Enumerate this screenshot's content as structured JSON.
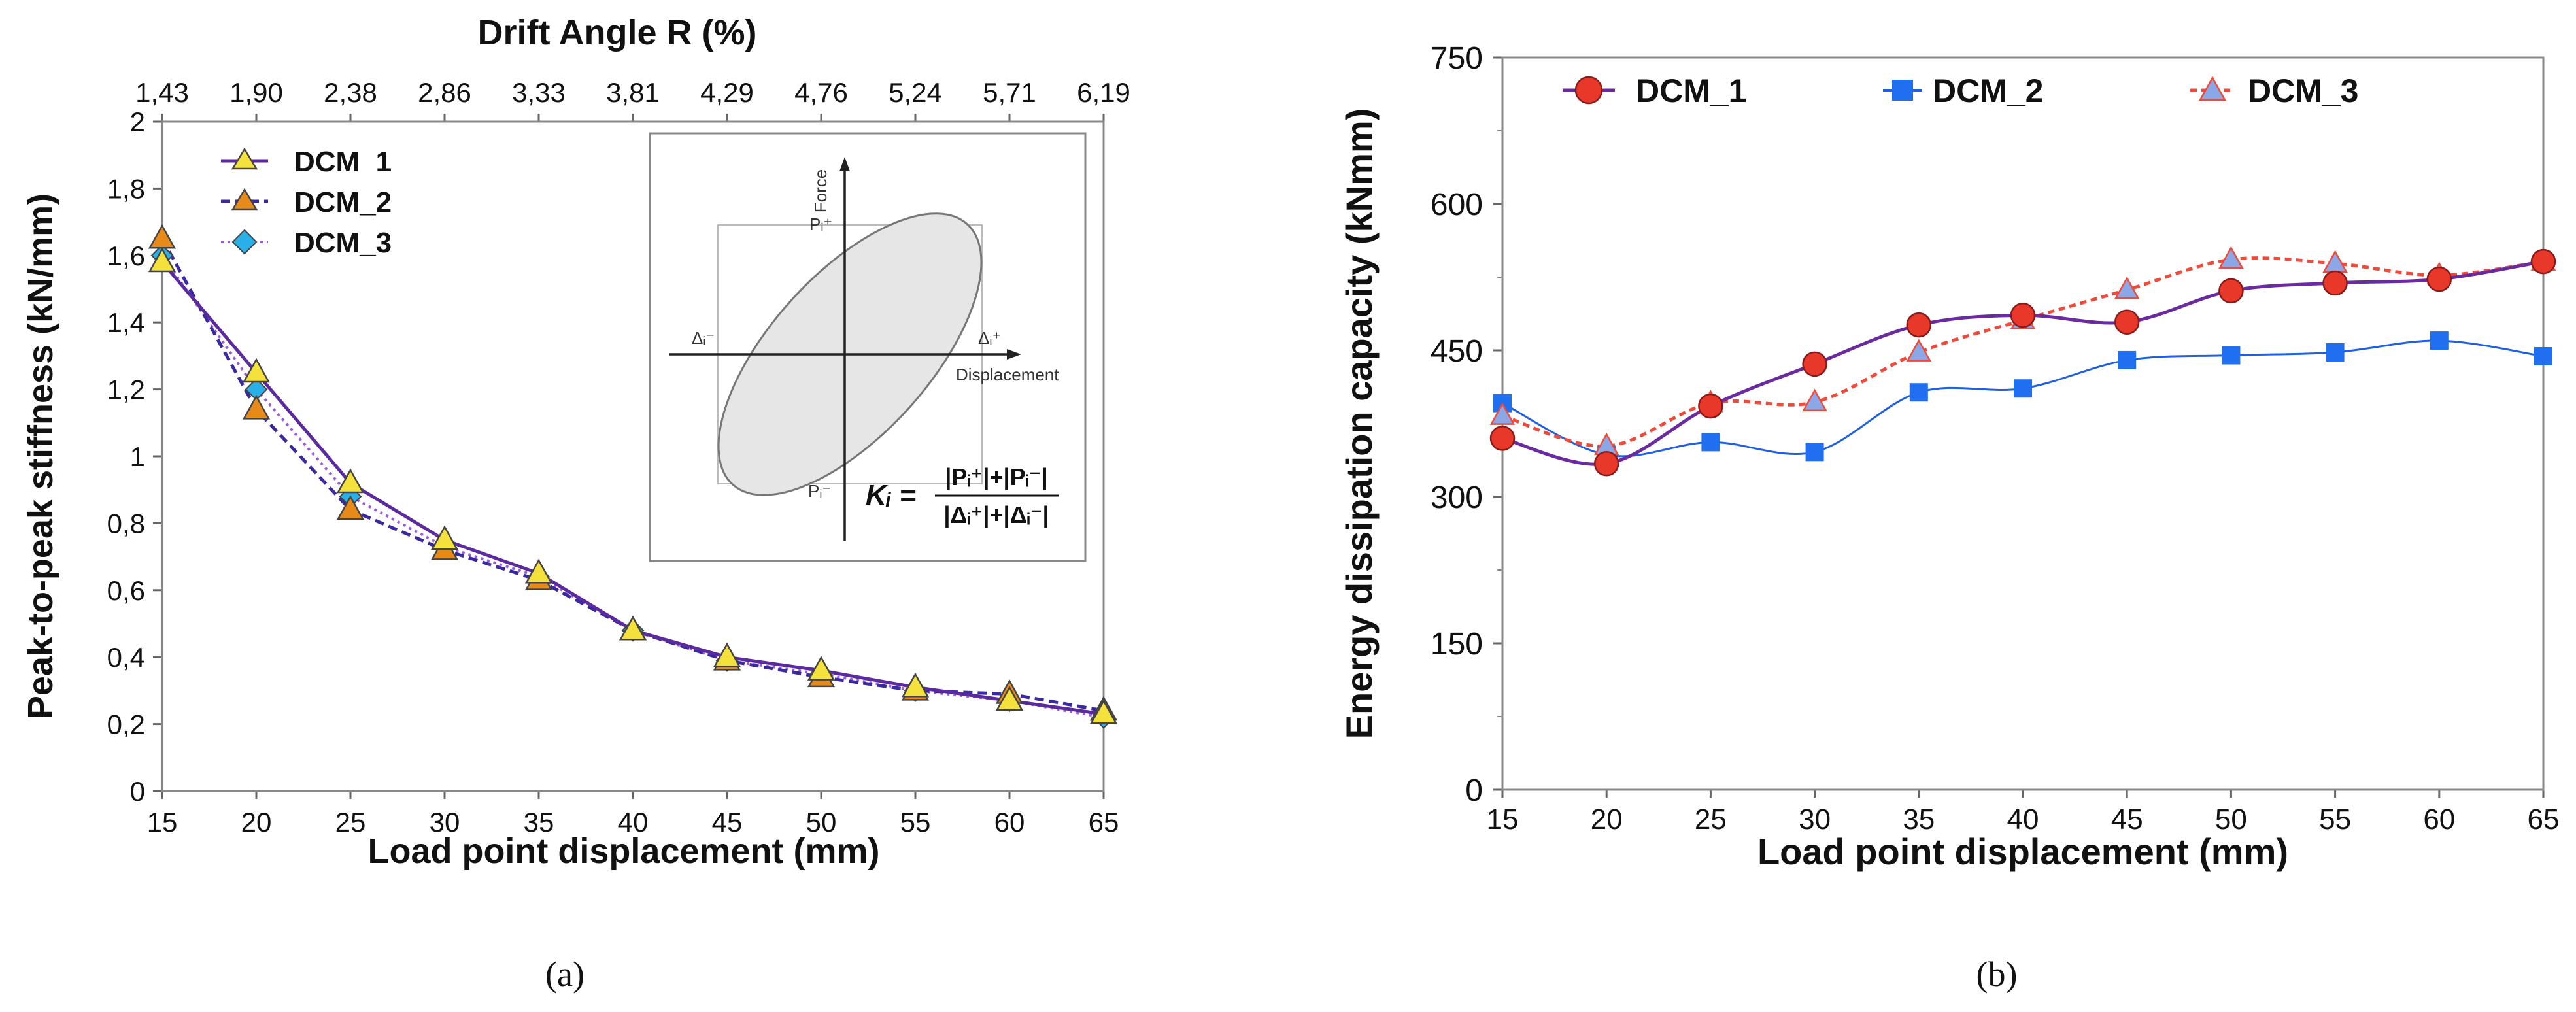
{
  "chart_data": [
    {
      "type": "line",
      "panel_label": "(a)",
      "xlabel": "Load point displacement (mm)",
      "x2label": "Drift Angle R (%)",
      "ylabel": "Peak-to-peak stiffness (kN/mm)",
      "x": [
        15,
        20,
        25,
        30,
        35,
        40,
        45,
        50,
        55,
        60,
        65
      ],
      "xlim": [
        15,
        65
      ],
      "ylim": [
        0,
        2
      ],
      "xticks": [
        "15",
        "20",
        "25",
        "30",
        "35",
        "40",
        "45",
        "50",
        "55",
        "60",
        "65"
      ],
      "yticks": [
        "0",
        "0,2",
        "0,4",
        "0,6",
        "0,8",
        "1",
        "1,2",
        "1,4",
        "1,6",
        "1,8",
        "2"
      ],
      "x2ticks": [
        "1,43",
        "1,90",
        "2,38",
        "2,86",
        "3,33",
        "3,81",
        "4,29",
        "4,76",
        "5,24",
        "5,71",
        "6,19"
      ],
      "legend_position": "top-left",
      "series": [
        {
          "name": "DCM_1",
          "legend_label": "DCM  1",
          "color": "#5b2a9e",
          "marker": "triangle",
          "marker_fill": "#f4e13b",
          "values": [
            1.58,
            1.25,
            0.92,
            0.75,
            0.65,
            0.48,
            0.4,
            0.36,
            0.31,
            0.27,
            0.23
          ]
        },
        {
          "name": "DCM_2",
          "legend_label": "DCM_2",
          "color": "#3a2aa0",
          "marker": "triangle",
          "marker_fill": "#e88a1a",
          "values": [
            1.65,
            1.14,
            0.84,
            0.72,
            0.63,
            0.48,
            0.39,
            0.34,
            0.3,
            0.29,
            0.24
          ]
        },
        {
          "name": "DCM_3",
          "legend_label": "DCM_3",
          "color": "#9a5ae0",
          "marker": "diamond",
          "marker_fill": "#2ab0e8",
          "values": [
            1.6,
            1.2,
            0.88,
            0.73,
            0.64,
            0.48,
            0.39,
            0.35,
            0.3,
            0.27,
            0.22
          ]
        }
      ],
      "inset": {
        "force_label": "Force",
        "displacement_label": "Displacement",
        "p_plus": "Pᵢ⁺",
        "p_minus": "Pᵢ⁻",
        "d_plus": "Δᵢ⁺",
        "d_minus": "Δᵢ⁻",
        "formula_lhs": "Kᵢ =",
        "formula_num": "|Pᵢ⁺|+|Pᵢ⁻|",
        "formula_den": "|Δᵢ⁺|+|Δᵢ⁻|"
      }
    },
    {
      "type": "line",
      "panel_label": "(b)",
      "xlabel": "Load point displacement (mm)",
      "ylabel": "Energy dissipation capacity (kNmm)",
      "x": [
        15,
        20,
        25,
        30,
        35,
        40,
        45,
        50,
        55,
        60,
        65
      ],
      "xlim": [
        15,
        65
      ],
      "ylim": [
        0,
        750
      ],
      "xticks": [
        "15",
        "20",
        "25",
        "30",
        "35",
        "40",
        "45",
        "50",
        "55",
        "60",
        "65"
      ],
      "yticks": [
        "0",
        "150",
        "300",
        "450",
        "600",
        "750"
      ],
      "legend_position": "top",
      "series": [
        {
          "name": "DCM_1",
          "legend_label": "DCM_1",
          "color": "#6a2aa0",
          "marker": "circle",
          "marker_fill": "#e8382a",
          "values": [
            360,
            334,
            393,
            436,
            476,
            486,
            479,
            511,
            519,
            523,
            541
          ]
        },
        {
          "name": "DCM_2",
          "legend_label": "DCM_2",
          "color": "#1f5fe0",
          "marker": "square",
          "marker_fill": "#1f6ff0",
          "values": [
            396,
            343,
            356,
            346,
            407,
            411,
            440,
            445,
            448,
            460,
            444
          ]
        },
        {
          "name": "DCM_3",
          "legend_label": "DCM_3",
          "color": "#f04a3a",
          "marker": "triangle",
          "marker_fill": "#8aa8e8",
          "values": [
            383,
            352,
            396,
            397,
            448,
            481,
            512,
            543,
            539,
            527,
            541
          ]
        }
      ]
    }
  ]
}
